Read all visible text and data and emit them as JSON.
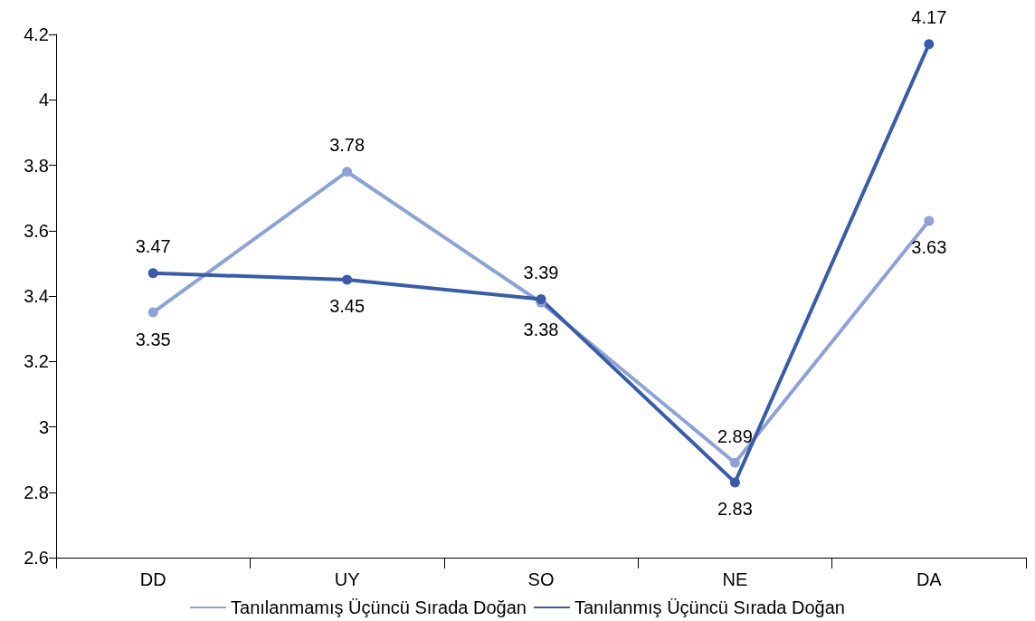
{
  "chart_data": {
    "type": "line",
    "categories": [
      "DD",
      "UY",
      "SO",
      "NE",
      "DA"
    ],
    "series": [
      {
        "name": "Tanılanmamış Üçüncü Sırada Doğan",
        "color": "#8fa2d6",
        "values": [
          3.35,
          3.78,
          3.38,
          2.89,
          3.63
        ]
      },
      {
        "name": "Tanılanmış Üçüncü Sırada Doğan",
        "color": "#3a5ca8",
        "values": [
          3.47,
          3.45,
          3.39,
          2.83,
          4.17
        ]
      }
    ],
    "ylim": [
      2.6,
      4.2
    ],
    "yticks": [
      2.6,
      2.8,
      3,
      3.2,
      3.4,
      3.6,
      3.8,
      4,
      4.2
    ],
    "grid": false,
    "legend": "bottom",
    "marker": "circle",
    "line_style": "solid",
    "data_labels": true
  }
}
